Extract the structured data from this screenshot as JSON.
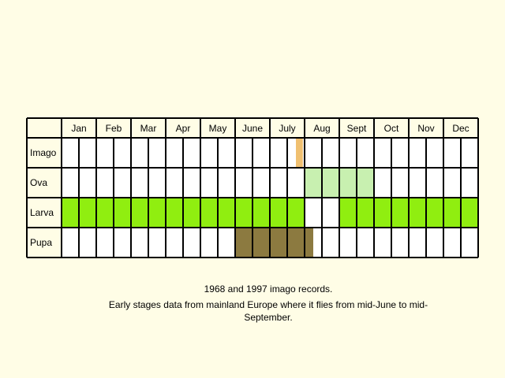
{
  "chart_data": {
    "type": "table",
    "months": [
      "Jan",
      "Feb",
      "Mar",
      "Apr",
      "May",
      "June",
      "July",
      "Aug",
      "Sept",
      "Oct",
      "Nov",
      "Dec"
    ],
    "rows": [
      {
        "label": "Imago",
        "color": "#f0c070",
        "periods": [
          [
            6.75,
            6.95
          ]
        ]
      },
      {
        "label": "Ova",
        "color": "#c8f0b0",
        "periods": [
          [
            7.0,
            9.0
          ]
        ]
      },
      {
        "label": "Larva",
        "color": "#90ee10",
        "periods": [
          [
            0.0,
            7.0
          ],
          [
            8.0,
            12.0
          ]
        ]
      },
      {
        "label": "Pupa",
        "color": "#8c7a40",
        "periods": [
          [
            5.0,
            7.25
          ]
        ]
      }
    ],
    "subdivisions_per_month": 2
  },
  "captions": {
    "line1": "1968 and 1997 imago records.",
    "line2": "Early stages data from mainland Europe where it flies from mid-June to mid-September."
  },
  "colors": {
    "background": "#fffde6",
    "cell": "#ffffff",
    "grid": "#000000"
  }
}
